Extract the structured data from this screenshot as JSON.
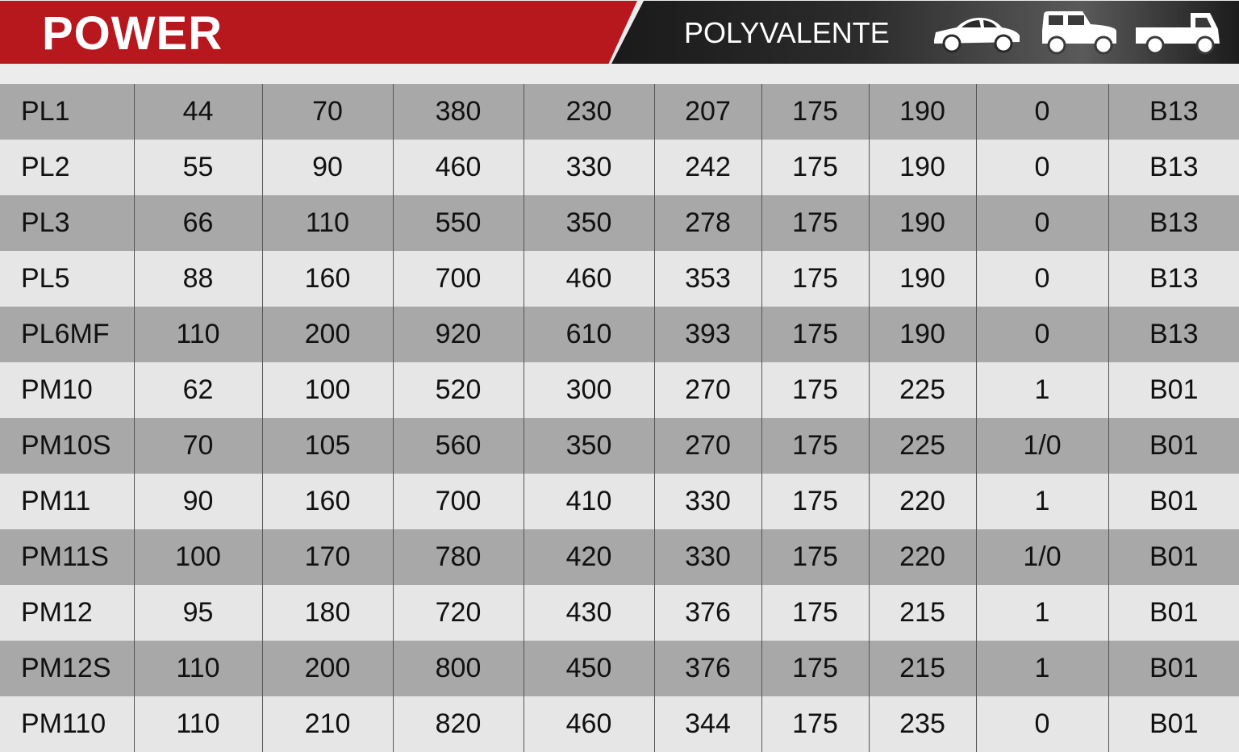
{
  "header": {
    "title": "POWER",
    "subtitle": "POLYVALENTE",
    "brand_color": "#b7181e",
    "icons": [
      "car-icon",
      "suv-icon",
      "pickup-truck-icon"
    ]
  },
  "rows": [
    [
      "PL1",
      "44",
      "70",
      "380",
      "230",
      "207",
      "175",
      "190",
      "0",
      "B13"
    ],
    [
      "PL2",
      "55",
      "90",
      "460",
      "330",
      "242",
      "175",
      "190",
      "0",
      "B13"
    ],
    [
      "PL3",
      "66",
      "110",
      "550",
      "350",
      "278",
      "175",
      "190",
      "0",
      "B13"
    ],
    [
      "PL5",
      "88",
      "160",
      "700",
      "460",
      "353",
      "175",
      "190",
      "0",
      "B13"
    ],
    [
      "PL6MF",
      "110",
      "200",
      "920",
      "610",
      "393",
      "175",
      "190",
      "0",
      "B13"
    ],
    [
      "PM10",
      "62",
      "100",
      "520",
      "300",
      "270",
      "175",
      "225",
      "1",
      "B01"
    ],
    [
      "PM10S",
      "70",
      "105",
      "560",
      "350",
      "270",
      "175",
      "225",
      "1/0",
      "B01"
    ],
    [
      "PM11",
      "90",
      "160",
      "700",
      "410",
      "330",
      "175",
      "220",
      "1",
      "B01"
    ],
    [
      "PM11S",
      "100",
      "170",
      "780",
      "420",
      "330",
      "175",
      "220",
      "1/0",
      "B01"
    ],
    [
      "PM12",
      "95",
      "180",
      "720",
      "430",
      "376",
      "175",
      "215",
      "1",
      "B01"
    ],
    [
      "PM12S",
      "110",
      "200",
      "800",
      "450",
      "376",
      "175",
      "215",
      "1",
      "B01"
    ],
    [
      "PM110",
      "110",
      "210",
      "820",
      "460",
      "344",
      "175",
      "235",
      "0",
      "B01"
    ]
  ]
}
